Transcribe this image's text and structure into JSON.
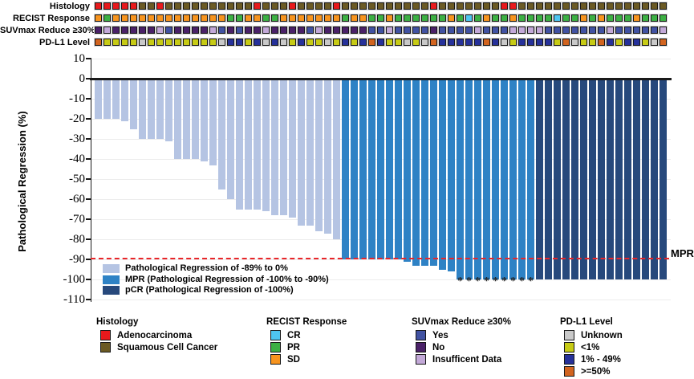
{
  "tracks": {
    "rows": [
      {
        "label": "Histology",
        "palette": {
          "A": "#E8191C",
          "S": "#6B5A24"
        },
        "cells": "AAAAASSASSSSSSSSSSASSSASSSSASSSSSSSSSSASSSSSSSAASSSSSSSSSSSSSSSSS"
      },
      {
        "label": "RECIST Response",
        "palette": {
          "O": "#F7941E",
          "P": "#3CB043",
          "C": "#4EC5F1"
        },
        "cells": "OPOOOOOOOOOOOOOPPOOPPOOOOOOOPOOPPOPPPPPPOPCPOPPOPPPPCPPOPOPPPOPPP"
      },
      {
        "label": "SUVmax Reduce ≥30%",
        "palette": {
          "Y": "#4152A2",
          "N": "#4A2168",
          "I": "#C3A9D8"
        },
        "cells": "NINNNNNIYNNNNIYNYNNINNNNYINNNNNYYIYYYYNYYYYIYYYIIIIYYYYYYYIYYYYYI"
      },
      {
        "label": "PD-L1 Level",
        "palette": {
          "U": "#C9C9C9",
          "L": "#C7CB15",
          "M": "#26319A",
          "H": "#D2641F"
        },
        "cells": "HLLLLULLLLLLLLUMMLMUMULMLLULMLMHMLLULUHMMMMMHMULMMMMLHULLHMLMMLUH"
      }
    ]
  },
  "chart_data": {
    "type": "bar",
    "subtype": "waterfall",
    "ylabel": "Pathological Regression (%)",
    "yticks": [
      10,
      0,
      -10,
      -20,
      -30,
      -40,
      -50,
      -60,
      -70,
      -80,
      -90,
      -100,
      -110
    ],
    "ylim": [
      -110,
      10
    ],
    "grid": true,
    "n_bars": 65,
    "values": [
      -20,
      -20,
      -20,
      -21,
      -25,
      -30,
      -30,
      -30,
      -31,
      -40,
      -40,
      -40,
      -41,
      -43,
      -55,
      -60,
      -65,
      -65,
      -65,
      -66,
      -68,
      -68,
      -69,
      -73,
      -73,
      -76,
      -77,
      -80,
      -90,
      -90,
      -90,
      -90,
      -90,
      -90,
      -90,
      -91,
      -93,
      -93,
      -93,
      -95,
      -96,
      -100,
      -100,
      -100,
      -100,
      -100,
      -100,
      -100,
      -100,
      -100,
      -100,
      -100,
      -100,
      -100,
      -100,
      -100,
      -100,
      -100,
      -100,
      -100,
      -100,
      -100,
      -100,
      -100,
      -100
    ],
    "groups": [
      {
        "name": "light",
        "range": [
          0,
          27
        ],
        "color": "#B5C4E3",
        "label": "Pathological Regression of -89% to 0%"
      },
      {
        "name": "mpr",
        "range": [
          28,
          49
        ],
        "color": "#2E82C5",
        "label": "MPR (Pathological Regression of -100% to -90%)"
      },
      {
        "name": "pcr",
        "range": [
          50,
          64
        ],
        "color": "#27497C",
        "label": "pCR (Pathological Regression of -100%)"
      }
    ],
    "mpr_line": {
      "y": -90,
      "color": "#E8262A",
      "label": "MPR"
    },
    "asterisk_indices": [
      41,
      42,
      43,
      44,
      45,
      46,
      47,
      48,
      49
    ],
    "asterisk_symbol": "*",
    "legend_position": "inside-bottom-left"
  },
  "bottom_legend": {
    "groups": [
      {
        "title": "Histology",
        "items": [
          {
            "label": "Adenocarcinoma",
            "color": "#E8191C"
          },
          {
            "label": "Squamous Cell Cancer",
            "color": "#6B5A24"
          }
        ]
      },
      {
        "title": "RECIST Response",
        "items": [
          {
            "label": "CR",
            "color": "#4EC5F1"
          },
          {
            "label": "PR",
            "color": "#3CB043"
          },
          {
            "label": "SD",
            "color": "#F7941E"
          }
        ]
      },
      {
        "title": "SUVmax Reduce ≥30%",
        "items": [
          {
            "label": "Yes",
            "color": "#4152A2"
          },
          {
            "label": "No",
            "color": "#4A2168"
          },
          {
            "label": "Insufficent Data",
            "color": "#C3A9D8"
          }
        ]
      },
      {
        "title": "PD-L1 Level",
        "items": [
          {
            "label": "Unknown",
            "color": "#C9C9C9"
          },
          {
            "label": "<1%",
            "color": "#C7CB15"
          },
          {
            "label": "1% - 49%",
            "color": "#26319A"
          },
          {
            "label": ">=50%",
            "color": "#D2641F"
          }
        ]
      }
    ]
  }
}
